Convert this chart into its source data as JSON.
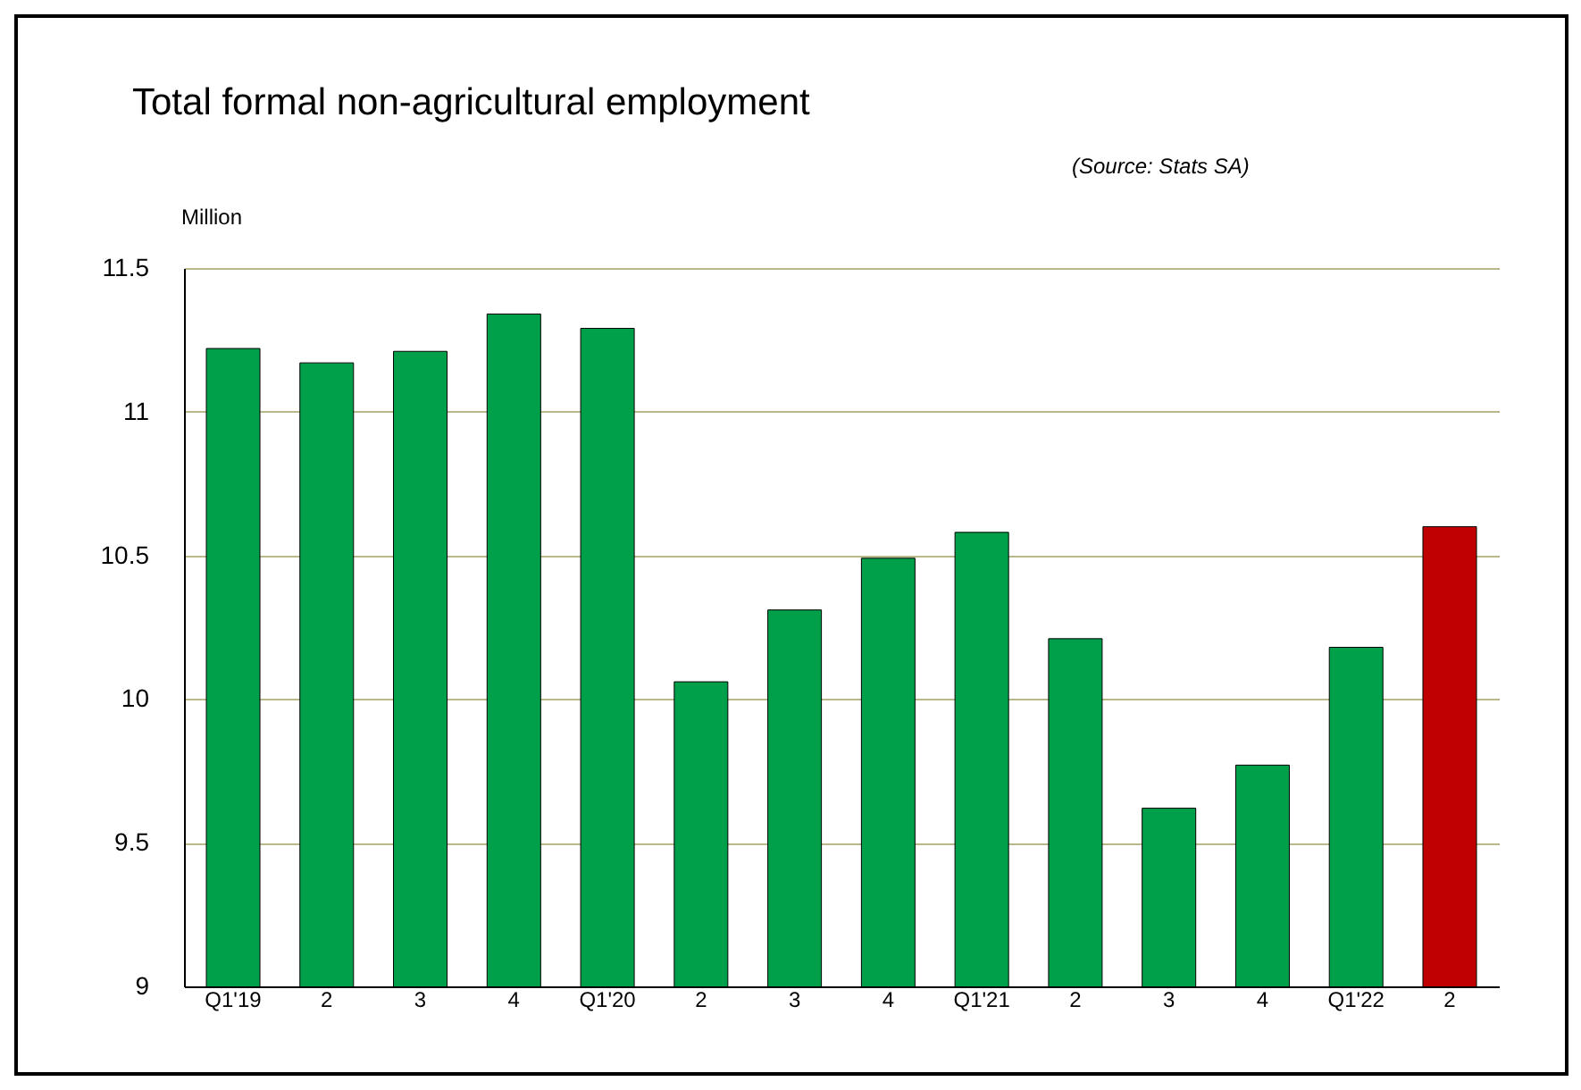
{
  "chart_data": {
    "type": "bar",
    "title": "Total formal non-agricultural employment",
    "annotations": [
      "(Source: Stats SA)"
    ],
    "ylabel": "Million",
    "categories": [
      "Q1'19",
      "2",
      "3",
      "4",
      "Q1'20",
      "2",
      "3",
      "4",
      "Q1'21",
      "2",
      "3",
      "4",
      "Q1'22",
      "2"
    ],
    "values": [
      11.22,
      11.17,
      11.21,
      11.34,
      11.29,
      10.06,
      10.31,
      10.49,
      10.58,
      10.21,
      9.62,
      9.77,
      10.18,
      10.6
    ],
    "colors": [
      "#00a04a",
      "#00a04a",
      "#00a04a",
      "#00a04a",
      "#00a04a",
      "#00a04a",
      "#00a04a",
      "#00a04a",
      "#00a04a",
      "#00a04a",
      "#00a04a",
      "#00a04a",
      "#00a04a",
      "#c00000"
    ],
    "ylim": [
      9,
      11.5
    ],
    "yticks": [
      9,
      9.5,
      10,
      10.5,
      11,
      11.5
    ],
    "grid": "y"
  }
}
